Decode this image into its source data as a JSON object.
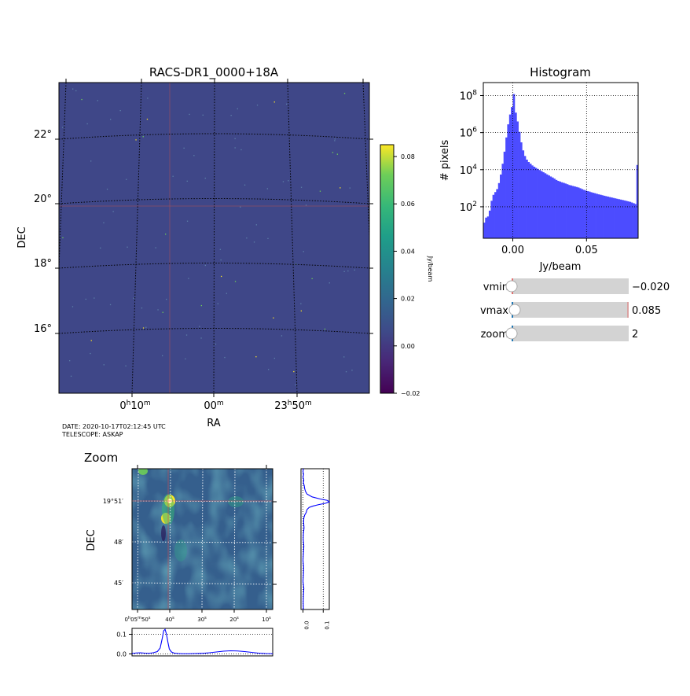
{
  "main_image": {
    "title": "RACS-DR1_0000+18A",
    "xlabel": "RA",
    "ylabel": "DEC",
    "ra_ticks": [
      {
        "h": "0",
        "m": "10"
      },
      {
        "h": "",
        "m": "00"
      },
      {
        "h": "23",
        "m": "50"
      }
    ],
    "dec_ticks": [
      "22°",
      "20°",
      "18°",
      "16°"
    ],
    "background_color": "#3f4788",
    "meta_date": "DATE: 2020-10-17T02:12:45 UTC",
    "meta_telescope": "TELESCOPE: ASKAP"
  },
  "colorbar": {
    "label": "Jy/beam",
    "ticks": [
      "0.08",
      "0.06",
      "0.04",
      "0.02",
      "0.00",
      "−0.02"
    ],
    "range": [
      -0.02,
      0.085
    ],
    "colormap": "viridis"
  },
  "chart_data": [
    {
      "type": "bar",
      "title": "Histogram",
      "xlabel": "Jy/beam",
      "ylabel": "# pixels",
      "xlim": [
        -0.02,
        0.085
      ],
      "yscale": "log",
      "grid": true,
      "color": "#4c4cff",
      "xticks": [
        "0.00",
        "0.05"
      ],
      "yticks": [
        {
          "base": "10",
          "exp": "8"
        },
        {
          "base": "10",
          "exp": "6"
        },
        {
          "base": "10",
          "exp": "4"
        },
        {
          "base": "10",
          "exp": "2"
        }
      ],
      "bins": [
        [
          -0.02,
          14
        ],
        [
          -0.0188,
          26
        ],
        [
          -0.0175,
          30
        ],
        [
          -0.0163,
          62
        ],
        [
          -0.015,
          210
        ],
        [
          -0.0138,
          440
        ],
        [
          -0.0125,
          620
        ],
        [
          -0.0113,
          900
        ],
        [
          -0.01,
          1900
        ],
        [
          -0.0088,
          5500
        ],
        [
          -0.0075,
          21000
        ],
        [
          -0.0063,
          94000
        ],
        [
          -0.005,
          550000
        ],
        [
          -0.0038,
          2800000
        ],
        [
          -0.0025,
          9500000
        ],
        [
          -0.0013,
          24000000
        ],
        [
          0.0,
          120000000
        ],
        [
          0.0013,
          12000000
        ],
        [
          0.0025,
          4000000
        ],
        [
          0.0038,
          1100000
        ],
        [
          0.005,
          300000
        ],
        [
          0.0063,
          110000
        ],
        [
          0.0075,
          55000
        ],
        [
          0.0088,
          35000
        ],
        [
          0.01,
          26000
        ],
        [
          0.0113,
          21000
        ],
        [
          0.0125,
          17000
        ],
        [
          0.0138,
          14500
        ],
        [
          0.015,
          12500
        ],
        [
          0.0163,
          11000
        ],
        [
          0.0175,
          9600
        ],
        [
          0.0188,
          8400
        ],
        [
          0.02,
          7300
        ],
        [
          0.0213,
          6400
        ],
        [
          0.0225,
          5600
        ],
        [
          0.0238,
          4900
        ],
        [
          0.025,
          4300
        ],
        [
          0.0263,
          3800
        ],
        [
          0.0275,
          3300
        ],
        [
          0.0288,
          2800
        ],
        [
          0.03,
          2500
        ],
        [
          0.0313,
          2300
        ],
        [
          0.0325,
          2100
        ],
        [
          0.0338,
          1950
        ],
        [
          0.035,
          1800
        ],
        [
          0.0363,
          1650
        ],
        [
          0.0375,
          1500
        ],
        [
          0.0388,
          1420
        ],
        [
          0.04,
          1330
        ],
        [
          0.0413,
          1250
        ],
        [
          0.0425,
          1170
        ],
        [
          0.0438,
          1100
        ],
        [
          0.045,
          1000
        ],
        [
          0.0463,
          900
        ],
        [
          0.0475,
          820
        ],
        [
          0.0488,
          750
        ],
        [
          0.05,
          700
        ],
        [
          0.0513,
          660
        ],
        [
          0.0525,
          610
        ],
        [
          0.0538,
          570
        ],
        [
          0.055,
          540
        ],
        [
          0.0563,
          500
        ],
        [
          0.0575,
          470
        ],
        [
          0.0588,
          445
        ],
        [
          0.06,
          420
        ],
        [
          0.0613,
          395
        ],
        [
          0.0625,
          375
        ],
        [
          0.0638,
          355
        ],
        [
          0.065,
          335
        ],
        [
          0.0663,
          318
        ],
        [
          0.0675,
          300
        ],
        [
          0.0688,
          285
        ],
        [
          0.07,
          270
        ],
        [
          0.0713,
          257
        ],
        [
          0.0725,
          245
        ],
        [
          0.0738,
          232
        ],
        [
          0.075,
          220
        ],
        [
          0.0763,
          208
        ],
        [
          0.0775,
          196
        ],
        [
          0.0788,
          185
        ],
        [
          0.08,
          170
        ],
        [
          0.0813,
          155
        ],
        [
          0.0825,
          140
        ],
        [
          0.0838,
          18000
        ]
      ]
    },
    {
      "type": "line",
      "name": "zoom-dec-profile",
      "color": "#0000ff",
      "xlim": [
        -0.01,
        0.13
      ],
      "xticks": [
        "0.0",
        "0.1"
      ],
      "y_fraction": [
        0.0,
        0.02,
        0.04,
        0.06,
        0.08,
        0.1,
        0.12,
        0.14,
        0.16,
        0.18,
        0.2,
        0.215,
        0.225,
        0.235,
        0.245,
        0.255,
        0.265,
        0.275,
        0.29,
        0.31,
        0.33,
        0.35,
        0.38,
        0.42,
        0.46,
        0.5,
        0.55,
        0.6,
        0.65,
        0.7,
        0.75,
        0.8,
        0.85,
        0.9,
        0.95,
        1.0
      ],
      "x": [
        0.002,
        0.0,
        0.003,
        0.0,
        0.004,
        0.002,
        0.006,
        0.008,
        0.012,
        0.02,
        0.045,
        0.085,
        0.12,
        0.13,
        0.112,
        0.078,
        0.05,
        0.03,
        0.02,
        0.016,
        0.008,
        0.004,
        0.003,
        0.005,
        0.002,
        0.001,
        0.004,
        0.002,
        0.0,
        0.003,
        0.002,
        0.0,
        0.004,
        0.002,
        0.001,
        0.002
      ]
    },
    {
      "type": "line",
      "name": "zoom-ra-profile",
      "color": "#0000ff",
      "ylim": [
        -0.01,
        0.13
      ],
      "yticks": [
        "0.1",
        "0.0"
      ],
      "x_fraction": [
        0.0,
        0.03,
        0.06,
        0.09,
        0.12,
        0.15,
        0.18,
        0.2,
        0.215,
        0.225,
        0.235,
        0.245,
        0.255,
        0.265,
        0.28,
        0.3,
        0.33,
        0.36,
        0.4,
        0.45,
        0.5,
        0.55,
        0.6,
        0.65,
        0.7,
        0.75,
        0.8,
        0.85,
        0.9,
        0.95,
        1.0
      ],
      "y": [
        0.002,
        0.005,
        0.006,
        0.004,
        0.003,
        0.006,
        0.012,
        0.03,
        0.08,
        0.118,
        0.125,
        0.1,
        0.06,
        0.025,
        0.01,
        0.004,
        0.002,
        0.001,
        0.001,
        0.002,
        0.003,
        0.006,
        0.01,
        0.014,
        0.016,
        0.015,
        0.012,
        0.008,
        0.004,
        0.002,
        0.001
      ]
    }
  ],
  "sliders": [
    {
      "name": "vmin",
      "label": "vmin",
      "value": "−0.020",
      "fraction": 0.0
    },
    {
      "name": "vmax",
      "label": "vmax",
      "value": "0.085",
      "fraction": 1.0
    },
    {
      "name": "zoom",
      "label": "zoom",
      "value": "2",
      "fraction": 0.0
    }
  ],
  "zoom_panel": {
    "title": "Zoom",
    "ylabel": "DEC",
    "dec_ticks": [
      "19°51′",
      "48′",
      "45′"
    ],
    "ra_ticks": [
      {
        "h": "0",
        "m": "05",
        "s": "50"
      },
      {
        "h": "",
        "m": "",
        "s": "40"
      },
      {
        "h": "",
        "m": "",
        "s": "30"
      },
      {
        "h": "",
        "m": "",
        "s": "20"
      },
      {
        "h": "",
        "m": "",
        "s": "10"
      }
    ]
  }
}
